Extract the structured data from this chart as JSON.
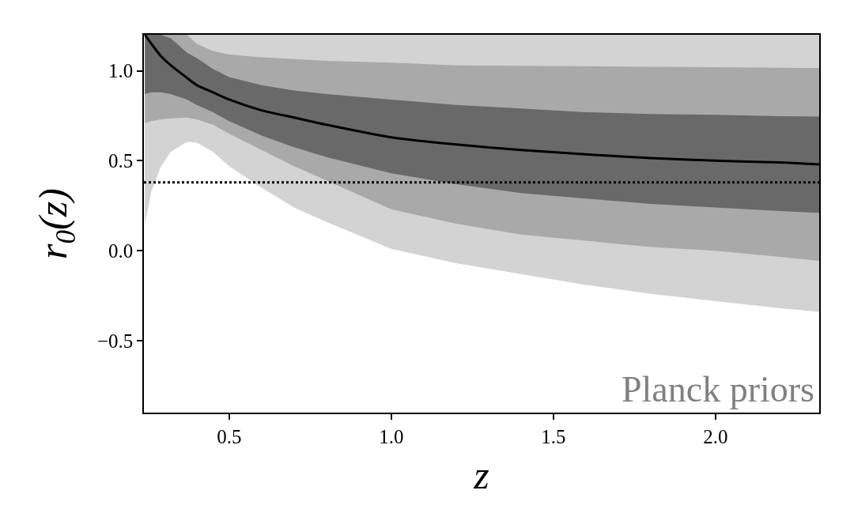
{
  "chart_data": {
    "type": "line",
    "xlabel": "z",
    "ylabel": "r$_{0}$(z)",
    "xlim": [
      0.237,
      2.32
    ],
    "ylim": [
      -0.9,
      1.2
    ],
    "xticks": [
      {
        "value": 0.5,
        "label": "0.5"
      },
      {
        "value": 1.0,
        "label": "1.0"
      },
      {
        "value": 1.5,
        "label": "1.5"
      },
      {
        "value": 2.0,
        "label": "2.0"
      }
    ],
    "yticks": [
      {
        "value": -0.5,
        "label": "−0.5"
      },
      {
        "value": 0,
        "label": "0.0"
      },
      {
        "value": 0.5,
        "label": "0.5"
      },
      {
        "value": 1.0,
        "label": "1.0"
      }
    ],
    "x": [
      0.24,
      0.26,
      0.29,
      0.32,
      0.37,
      0.4,
      0.45,
      0.5,
      0.6,
      0.7,
      0.8,
      1.0,
      1.2,
      1.4,
      1.6,
      1.8,
      2.0,
      2.2,
      2.32
    ],
    "series": [
      {
        "color": "#d3d3d3",
        "values": [
          null,
          null,
          null,
          null,
          null,
          null,
          null,
          null,
          null,
          null,
          null,
          null,
          null,
          null,
          null,
          null,
          null,
          null,
          null
        ],
        "upper": [
          1.2,
          1.2,
          1.2,
          1.2,
          1.2,
          1.2,
          1.2,
          1.2,
          1.2,
          1.2,
          1.2,
          1.2,
          1.2,
          1.2,
          1.2,
          1.2,
          1.2,
          1.2,
          1.2
        ],
        "lower": [
          0.15,
          0.33,
          0.47,
          0.55,
          0.605,
          0.6,
          0.55,
          0.47,
          0.35,
          0.24,
          0.16,
          0.01,
          -0.07,
          -0.13,
          -0.19,
          -0.24,
          -0.28,
          -0.32,
          -0.34
        ]
      },
      {
        "color": "#a9a9a9",
        "values": [
          null,
          null,
          null,
          null,
          null,
          null,
          null,
          null,
          null,
          null,
          null,
          null,
          null,
          null,
          null,
          null,
          null,
          null,
          null
        ],
        "upper": [
          1.2,
          1.2,
          1.2,
          1.2,
          1.2,
          1.15,
          1.11,
          1.09,
          1.075,
          1.065,
          1.055,
          1.045,
          1.03,
          1.028,
          1.025,
          1.022,
          1.02,
          1.017,
          1.015
        ],
        "lower": [
          0.71,
          0.72,
          0.73,
          0.735,
          0.74,
          0.73,
          0.7,
          0.65,
          0.56,
          0.47,
          0.39,
          0.23,
          0.15,
          0.09,
          0.055,
          0.02,
          0.0,
          -0.035,
          -0.056
        ]
      },
      {
        "color": "#696969",
        "values": [
          null,
          null,
          null,
          null,
          null,
          null,
          null,
          null,
          null,
          null,
          null,
          null,
          null,
          null,
          null,
          null,
          null,
          null,
          null
        ],
        "upper": [
          1.2,
          1.2,
          1.2,
          1.18,
          1.1,
          1.07,
          1.01,
          0.965,
          0.92,
          0.89,
          0.87,
          0.84,
          0.81,
          0.79,
          0.77,
          0.76,
          0.755,
          0.748,
          0.745
        ],
        "lower": [
          0.87,
          0.88,
          0.88,
          0.87,
          0.84,
          0.81,
          0.77,
          0.72,
          0.64,
          0.575,
          0.52,
          0.43,
          0.37,
          0.32,
          0.29,
          0.26,
          0.24,
          0.22,
          0.21
        ]
      },
      {
        "color": "#000000",
        "values": [
          1.2,
          1.15,
          1.08,
          1.03,
          0.96,
          0.92,
          0.88,
          0.84,
          0.78,
          0.74,
          0.7,
          0.63,
          0.59,
          0.56,
          0.535,
          0.515,
          0.5,
          0.49,
          0.48
        ]
      }
    ],
    "ref_lines": [
      {
        "axis": "y",
        "value": 0.38,
        "color": "#000000",
        "line_style": "dotted"
      }
    ],
    "annotations": [
      "Planck priors"
    ],
    "grid": false
  }
}
